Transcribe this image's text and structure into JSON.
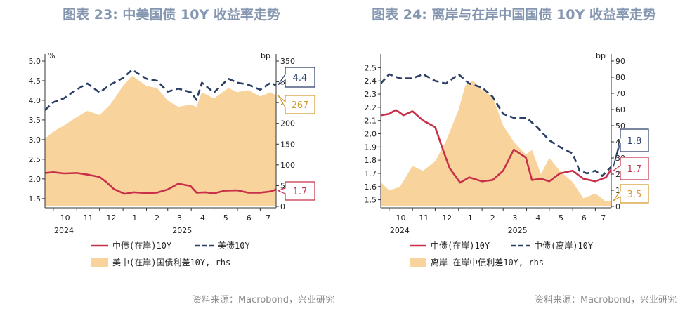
{
  "source_note": "资料来源：Macrobond，兴业研究",
  "colors": {
    "red": "#c8304a",
    "navy": "#2b3f66",
    "fill": "#f8d49c",
    "title": "#8496b0",
    "callout_gold": "#d59a2f"
  },
  "charts": [
    {
      "title": "图表 23: 中美国债 10Y 收益率走势",
      "left_unit": "%",
      "right_unit": "bp",
      "month_labels": [
        "10",
        "11",
        "12",
        "1",
        "2",
        "3",
        "4",
        "5",
        "6",
        "7"
      ],
      "year_labels": [
        "2024",
        "2025"
      ],
      "legend": {
        "line1": "中债(在岸)10Y",
        "line2": "美债10Y",
        "area": "美中(在岸)国债利差10Y, rhs"
      },
      "callouts": {
        "navy": "4.4",
        "area": "267",
        "red": "1.7"
      }
    },
    {
      "title": "图表 24: 离岸与在岸中国国债 10Y 收益率走势",
      "left_unit": "",
      "right_unit": "bp",
      "month_labels": [
        "10",
        "11",
        "12",
        "1",
        "2",
        "3",
        "4",
        "5",
        "6",
        "7"
      ],
      "year_labels": [
        "2024",
        "2025"
      ],
      "legend": {
        "line1": "中债(在岸)10Y",
        "line2": "中债(离岸)10Y",
        "area": "离岸-在岸中债利差10Y, rhs"
      },
      "callouts": {
        "navy": "1.8",
        "red": "1.7",
        "area": "3.5"
      }
    }
  ],
  "chart_data": [
    {
      "type": "line",
      "title": "图表 23: 中美国债 10Y 收益率走势",
      "x_range": [
        "2024-09-20",
        "2025-07-22"
      ],
      "left_axis": {
        "unit": "%",
        "min": 1.3,
        "max": 5.0,
        "ticks": [
          1.5,
          2.0,
          2.5,
          3.0,
          3.5,
          4.0,
          4.5,
          5.0
        ]
      },
      "right_axis": {
        "unit": "bp",
        "min": 0,
        "max": 350,
        "ticks": [
          0,
          50,
          100,
          150,
          200,
          250,
          300,
          350
        ]
      },
      "series": [
        {
          "name": "中债(在岸)10Y",
          "axis": "left",
          "style": "solid",
          "color": "#c8304a",
          "points": [
            [
              "2024-09-20",
              2.15
            ],
            [
              "2024-10-01",
              2.17
            ],
            [
              "2024-10-15",
              2.14
            ],
            [
              "2024-11-01",
              2.15
            ],
            [
              "2024-11-15",
              2.11
            ],
            [
              "2024-12-01",
              2.05
            ],
            [
              "2024-12-10",
              1.92
            ],
            [
              "2024-12-20",
              1.74
            ],
            [
              "2025-01-03",
              1.62
            ],
            [
              "2025-01-15",
              1.66
            ],
            [
              "2025-02-01",
              1.64
            ],
            [
              "2025-02-15",
              1.65
            ],
            [
              "2025-03-01",
              1.73
            ],
            [
              "2025-03-15",
              1.88
            ],
            [
              "2025-03-31",
              1.82
            ],
            [
              "2025-04-08",
              1.65
            ],
            [
              "2025-04-20",
              1.66
            ],
            [
              "2025-05-01",
              1.63
            ],
            [
              "2025-05-15",
              1.7
            ],
            [
              "2025-06-01",
              1.71
            ],
            [
              "2025-06-15",
              1.65
            ],
            [
              "2025-07-01",
              1.65
            ],
            [
              "2025-07-15",
              1.68
            ],
            [
              "2025-07-22",
              1.73
            ]
          ]
        },
        {
          "name": "美债10Y",
          "axis": "left",
          "style": "dashed",
          "color": "#2b3f66",
          "points": [
            [
              "2024-09-20",
              3.75
            ],
            [
              "2024-10-01",
              3.95
            ],
            [
              "2024-10-15",
              4.05
            ],
            [
              "2024-11-01",
              4.28
            ],
            [
              "2024-11-15",
              4.43
            ],
            [
              "2024-12-01",
              4.2
            ],
            [
              "2024-12-15",
              4.4
            ],
            [
              "2025-01-01",
              4.57
            ],
            [
              "2025-01-13",
              4.78
            ],
            [
              "2025-02-01",
              4.55
            ],
            [
              "2025-02-15",
              4.5
            ],
            [
              "2025-03-01",
              4.22
            ],
            [
              "2025-03-15",
              4.3
            ],
            [
              "2025-04-01",
              4.2
            ],
            [
              "2025-04-08",
              4.01
            ],
            [
              "2025-04-15",
              4.45
            ],
            [
              "2025-05-01",
              4.2
            ],
            [
              "2025-05-20",
              4.55
            ],
            [
              "2025-06-01",
              4.45
            ],
            [
              "2025-06-15",
              4.4
            ],
            [
              "2025-07-01",
              4.27
            ],
            [
              "2025-07-15",
              4.45
            ],
            [
              "2025-07-22",
              4.38
            ]
          ]
        },
        {
          "name": "美中(在岸)国债利差10Y, rhs",
          "axis": "right",
          "style": "area",
          "color": "#f8d49c",
          "points": [
            [
              "2024-09-20",
              163
            ],
            [
              "2024-10-01",
              180
            ],
            [
              "2024-10-15",
              195
            ],
            [
              "2024-11-01",
              215
            ],
            [
              "2024-11-15",
              230
            ],
            [
              "2024-12-01",
              220
            ],
            [
              "2024-12-15",
              245
            ],
            [
              "2025-01-01",
              290
            ],
            [
              "2025-01-13",
              315
            ],
            [
              "2025-02-01",
              290
            ],
            [
              "2025-02-15",
              285
            ],
            [
              "2025-03-01",
              255
            ],
            [
              "2025-03-15",
              240
            ],
            [
              "2025-03-31",
              245
            ],
            [
              "2025-04-08",
              240
            ],
            [
              "2025-04-15",
              275
            ],
            [
              "2025-05-01",
              260
            ],
            [
              "2025-05-20",
              285
            ],
            [
              "2025-06-01",
              275
            ],
            [
              "2025-06-15",
              280
            ],
            [
              "2025-07-01",
              265
            ],
            [
              "2025-07-15",
              275
            ],
            [
              "2025-07-22",
              267
            ]
          ]
        }
      ],
      "callouts": [
        {
          "series": "美债10Y",
          "value": 4.4
        },
        {
          "series": "美中(在岸)国债利差10Y, rhs",
          "value": 267
        },
        {
          "series": "中债(在岸)10Y",
          "value": 1.7
        }
      ]
    },
    {
      "type": "line",
      "title": "图表 24: 离岸与在岸中国国债 10Y 收益率走势",
      "x_range": [
        "2024-09-20",
        "2025-07-22"
      ],
      "left_axis": {
        "min": 1.45,
        "max": 2.55,
        "ticks": [
          1.5,
          1.6,
          1.7,
          1.8,
          1.9,
          2.0,
          2.1,
          2.2,
          2.3,
          2.4,
          2.5
        ]
      },
      "right_axis": {
        "unit": "bp",
        "min": 0,
        "max": 90,
        "ticks": [
          0,
          10,
          20,
          30,
          40,
          50,
          60,
          70,
          80,
          90
        ]
      },
      "series": [
        {
          "name": "中债(在岸)10Y",
          "axis": "left",
          "style": "solid",
          "color": "#c8304a",
          "points": [
            [
              "2024-09-20",
              2.14
            ],
            [
              "2024-10-01",
              2.15
            ],
            [
              "2024-10-10",
              2.18
            ],
            [
              "2024-10-20",
              2.14
            ],
            [
              "2024-11-01",
              2.17
            ],
            [
              "2024-11-15",
              2.1
            ],
            [
              "2024-12-01",
              2.05
            ],
            [
              "2024-12-10",
              1.9
            ],
            [
              "2024-12-20",
              1.74
            ],
            [
              "2025-01-03",
              1.63
            ],
            [
              "2025-01-15",
              1.67
            ],
            [
              "2025-02-01",
              1.64
            ],
            [
              "2025-02-15",
              1.65
            ],
            [
              "2025-03-01",
              1.72
            ],
            [
              "2025-03-15",
              1.88
            ],
            [
              "2025-03-31",
              1.82
            ],
            [
              "2025-04-08",
              1.65
            ],
            [
              "2025-04-20",
              1.66
            ],
            [
              "2025-05-01",
              1.64
            ],
            [
              "2025-05-15",
              1.7
            ],
            [
              "2025-06-01",
              1.72
            ],
            [
              "2025-06-15",
              1.66
            ],
            [
              "2025-07-01",
              1.64
            ],
            [
              "2025-07-15",
              1.67
            ],
            [
              "2025-07-22",
              1.73
            ]
          ]
        },
        {
          "name": "中债(离岸)10Y",
          "axis": "left",
          "style": "dashed",
          "color": "#2b3f66",
          "points": [
            [
              "2024-09-20",
              2.38
            ],
            [
              "2024-10-01",
              2.45
            ],
            [
              "2024-10-15",
              2.42
            ],
            [
              "2024-11-01",
              2.42
            ],
            [
              "2024-11-15",
              2.45
            ],
            [
              "2024-12-01",
              2.4
            ],
            [
              "2024-12-15",
              2.38
            ],
            [
              "2025-01-01",
              2.45
            ],
            [
              "2025-01-15",
              2.38
            ],
            [
              "2025-02-01",
              2.35
            ],
            [
              "2025-02-15",
              2.28
            ],
            [
              "2025-03-01",
              2.15
            ],
            [
              "2025-03-15",
              2.12
            ],
            [
              "2025-04-01",
              2.12
            ],
            [
              "2025-04-15",
              2.05
            ],
            [
              "2025-05-01",
              1.95
            ],
            [
              "2025-05-15",
              1.9
            ],
            [
              "2025-06-01",
              1.85
            ],
            [
              "2025-06-10",
              1.72
            ],
            [
              "2025-06-20",
              1.7
            ],
            [
              "2025-07-01",
              1.72
            ],
            [
              "2025-07-10",
              1.68
            ],
            [
              "2025-07-22",
              1.75
            ]
          ]
        },
        {
          "name": "离岸-在岸中债利差10Y, rhs",
          "axis": "right",
          "style": "area",
          "color": "#f8d49c",
          "points": [
            [
              "2024-09-20",
              15
            ],
            [
              "2024-10-01",
              10
            ],
            [
              "2024-10-15",
              12
            ],
            [
              "2024-11-01",
              25
            ],
            [
              "2024-11-15",
              22
            ],
            [
              "2024-12-01",
              28
            ],
            [
              "2024-12-15",
              40
            ],
            [
              "2025-01-01",
              60
            ],
            [
              "2025-01-10",
              75
            ],
            [
              "2025-01-20",
              78
            ],
            [
              "2025-02-01",
              72
            ],
            [
              "2025-02-15",
              68
            ],
            [
              "2025-03-01",
              50
            ],
            [
              "2025-03-15",
              40
            ],
            [
              "2025-03-31",
              32
            ],
            [
              "2025-04-08",
              35
            ],
            [
              "2025-04-20",
              20
            ],
            [
              "2025-05-01",
              30
            ],
            [
              "2025-05-15",
              22
            ],
            [
              "2025-06-01",
              15
            ],
            [
              "2025-06-15",
              5
            ],
            [
              "2025-07-01",
              8
            ],
            [
              "2025-07-15",
              3
            ],
            [
              "2025-07-22",
              3.5
            ]
          ]
        }
      ],
      "callouts": [
        {
          "series": "中债(离岸)10Y",
          "value": 1.8
        },
        {
          "series": "中债(在岸)10Y",
          "value": 1.7
        },
        {
          "series": "离岸-在岸中债利差10Y, rhs",
          "value": 3.5
        }
      ]
    }
  ]
}
